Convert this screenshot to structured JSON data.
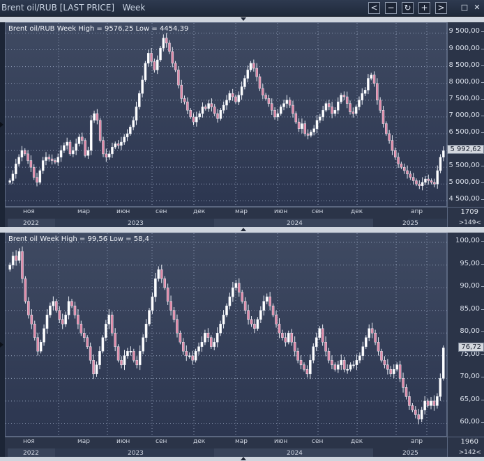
{
  "window": {
    "title": "Brent oil/RUB [LAST PRICE]   Week",
    "controls": [
      {
        "name": "scroll-left-icon",
        "glyph": "<"
      },
      {
        "name": "zoom-out-icon",
        "glyph": "−"
      },
      {
        "name": "refresh-icon",
        "glyph": "↻"
      },
      {
        "name": "zoom-in-icon",
        "glyph": "+"
      },
      {
        "name": "scroll-right-icon",
        "glyph": ">"
      },
      {
        "name": "maximize-icon",
        "glyph": "□"
      },
      {
        "name": "close-icon",
        "glyph": "✕"
      }
    ]
  },
  "colors": {
    "background": "#1c2536",
    "plot_top": "#3f4a62",
    "plot_bottom": "#2c3650",
    "candle_up": "#ffffff",
    "candle_down": "#e08aa8",
    "grid": "#8e9bb5"
  },
  "x_axis": {
    "months": [
      "ноя",
      "мар",
      "июн",
      "сен",
      "дек",
      "мар",
      "июн",
      "сен",
      "дек",
      "апр"
    ],
    "years": [
      "2022",
      "2023",
      "2024",
      "2025"
    ]
  },
  "chart_data": [
    {
      "type": "candlestick",
      "label": "Brent oil/RUB Week High = 9576,25 Low = 4454,39",
      "high": 9576.25,
      "low": 4454.39,
      "ylim": [
        4300,
        9800
      ],
      "yticks": [
        "9 500,00",
        "9 000,00",
        "8 500,00",
        "8 000,00",
        "7 500,00",
        "7 000,00",
        "6 500,00",
        "6 000,00",
        "5 500,00",
        "5 000,00",
        "4 500,00"
      ],
      "ytick_values": [
        9500,
        9000,
        8500,
        8000,
        7500,
        7000,
        6500,
        6000,
        5500,
        5000,
        4500
      ],
      "last": "5 992,62",
      "last_value": 5992.62,
      "bar_count": "1709",
      "nav": ">149<",
      "closes": [
        5100,
        5300,
        5600,
        5800,
        6000,
        5900,
        5700,
        5500,
        5200,
        5050,
        5400,
        5700,
        5800,
        5750,
        5700,
        5650,
        5800,
        6000,
        6150,
        6250,
        5900,
        6000,
        6200,
        6400,
        6300,
        5850,
        6000,
        6900,
        7100,
        6900,
        6300,
        5900,
        5800,
        5900,
        6100,
        6200,
        6150,
        6250,
        6400,
        6500,
        6700,
        6900,
        7300,
        7700,
        8100,
        8600,
        8900,
        8650,
        8400,
        8700,
        9050,
        9350,
        9200,
        8950,
        8600,
        8400,
        7950,
        7550,
        7450,
        7200,
        7000,
        6850,
        7000,
        7100,
        7300,
        7250,
        7400,
        7300,
        7100,
        6950,
        7200,
        7350,
        7500,
        7700,
        7600,
        7450,
        7650,
        7900,
        8150,
        8400,
        8600,
        8450,
        8200,
        7850,
        7650,
        7550,
        7400,
        7200,
        7000,
        7100,
        7300,
        7400,
        7500,
        7350,
        7100,
        6850,
        6650,
        6800,
        6500,
        6450,
        6550,
        6650,
        6900,
        7000,
        7200,
        7400,
        7300,
        7100,
        7200,
        7450,
        7650,
        7600,
        7400,
        7150,
        7100,
        7300,
        7500,
        7700,
        7800,
        8150,
        8250,
        8000,
        7500,
        7200,
        6800,
        6500,
        6300,
        6000,
        5800,
        5600,
        5500,
        5400,
        5300,
        5200,
        5100,
        5000,
        4950,
        5050,
        5150,
        5100,
        5050,
        5000,
        5400,
        5800,
        5992.62
      ]
    },
    {
      "type": "candlestick",
      "label": "Brent oil Week High = 99,56 Low = 58,4",
      "high": 99.56,
      "low": 58.4,
      "ylim": [
        57,
        102
      ],
      "yticks": [
        "100,00",
        "95,00",
        "90,00",
        "85,00",
        "80,00",
        "75,00",
        "70,00",
        "65,00",
        "60,00"
      ],
      "ytick_values": [
        100,
        95,
        90,
        85,
        80,
        75,
        70,
        65,
        60
      ],
      "last": "76,72",
      "last_value": 76.72,
      "bar_count": "1960",
      "nav": ">142<",
      "closes": [
        95,
        97,
        96,
        98,
        92,
        87,
        84,
        82,
        79,
        76,
        78,
        81,
        84,
        86,
        87,
        85,
        83,
        82,
        84,
        87,
        86,
        84,
        82,
        80,
        79,
        77,
        74,
        71,
        73,
        76,
        79,
        82,
        84,
        80,
        77,
        74,
        73,
        75,
        76,
        76,
        74,
        73,
        76,
        79,
        82,
        85,
        88,
        92,
        94,
        92,
        90,
        87,
        85,
        83,
        80,
        78,
        76,
        75,
        75,
        74,
        76,
        77,
        78,
        80,
        79,
        77,
        78,
        80,
        82,
        84,
        86,
        88,
        90,
        91,
        89,
        87,
        85,
        83,
        82,
        81,
        83,
        85,
        87,
        88,
        86,
        84,
        82,
        80,
        79,
        78,
        80,
        78,
        76,
        74,
        73,
        72,
        71,
        74,
        77,
        79,
        81,
        78,
        76,
        74,
        73,
        72,
        73,
        74,
        72,
        72,
        73,
        73,
        74,
        75,
        77,
        79,
        81,
        80,
        78,
        76,
        74,
        73,
        72,
        71,
        72,
        73,
        70,
        68,
        66,
        64,
        63,
        62,
        61,
        63,
        65,
        64,
        65,
        64,
        66,
        70,
        76.72
      ]
    }
  ]
}
